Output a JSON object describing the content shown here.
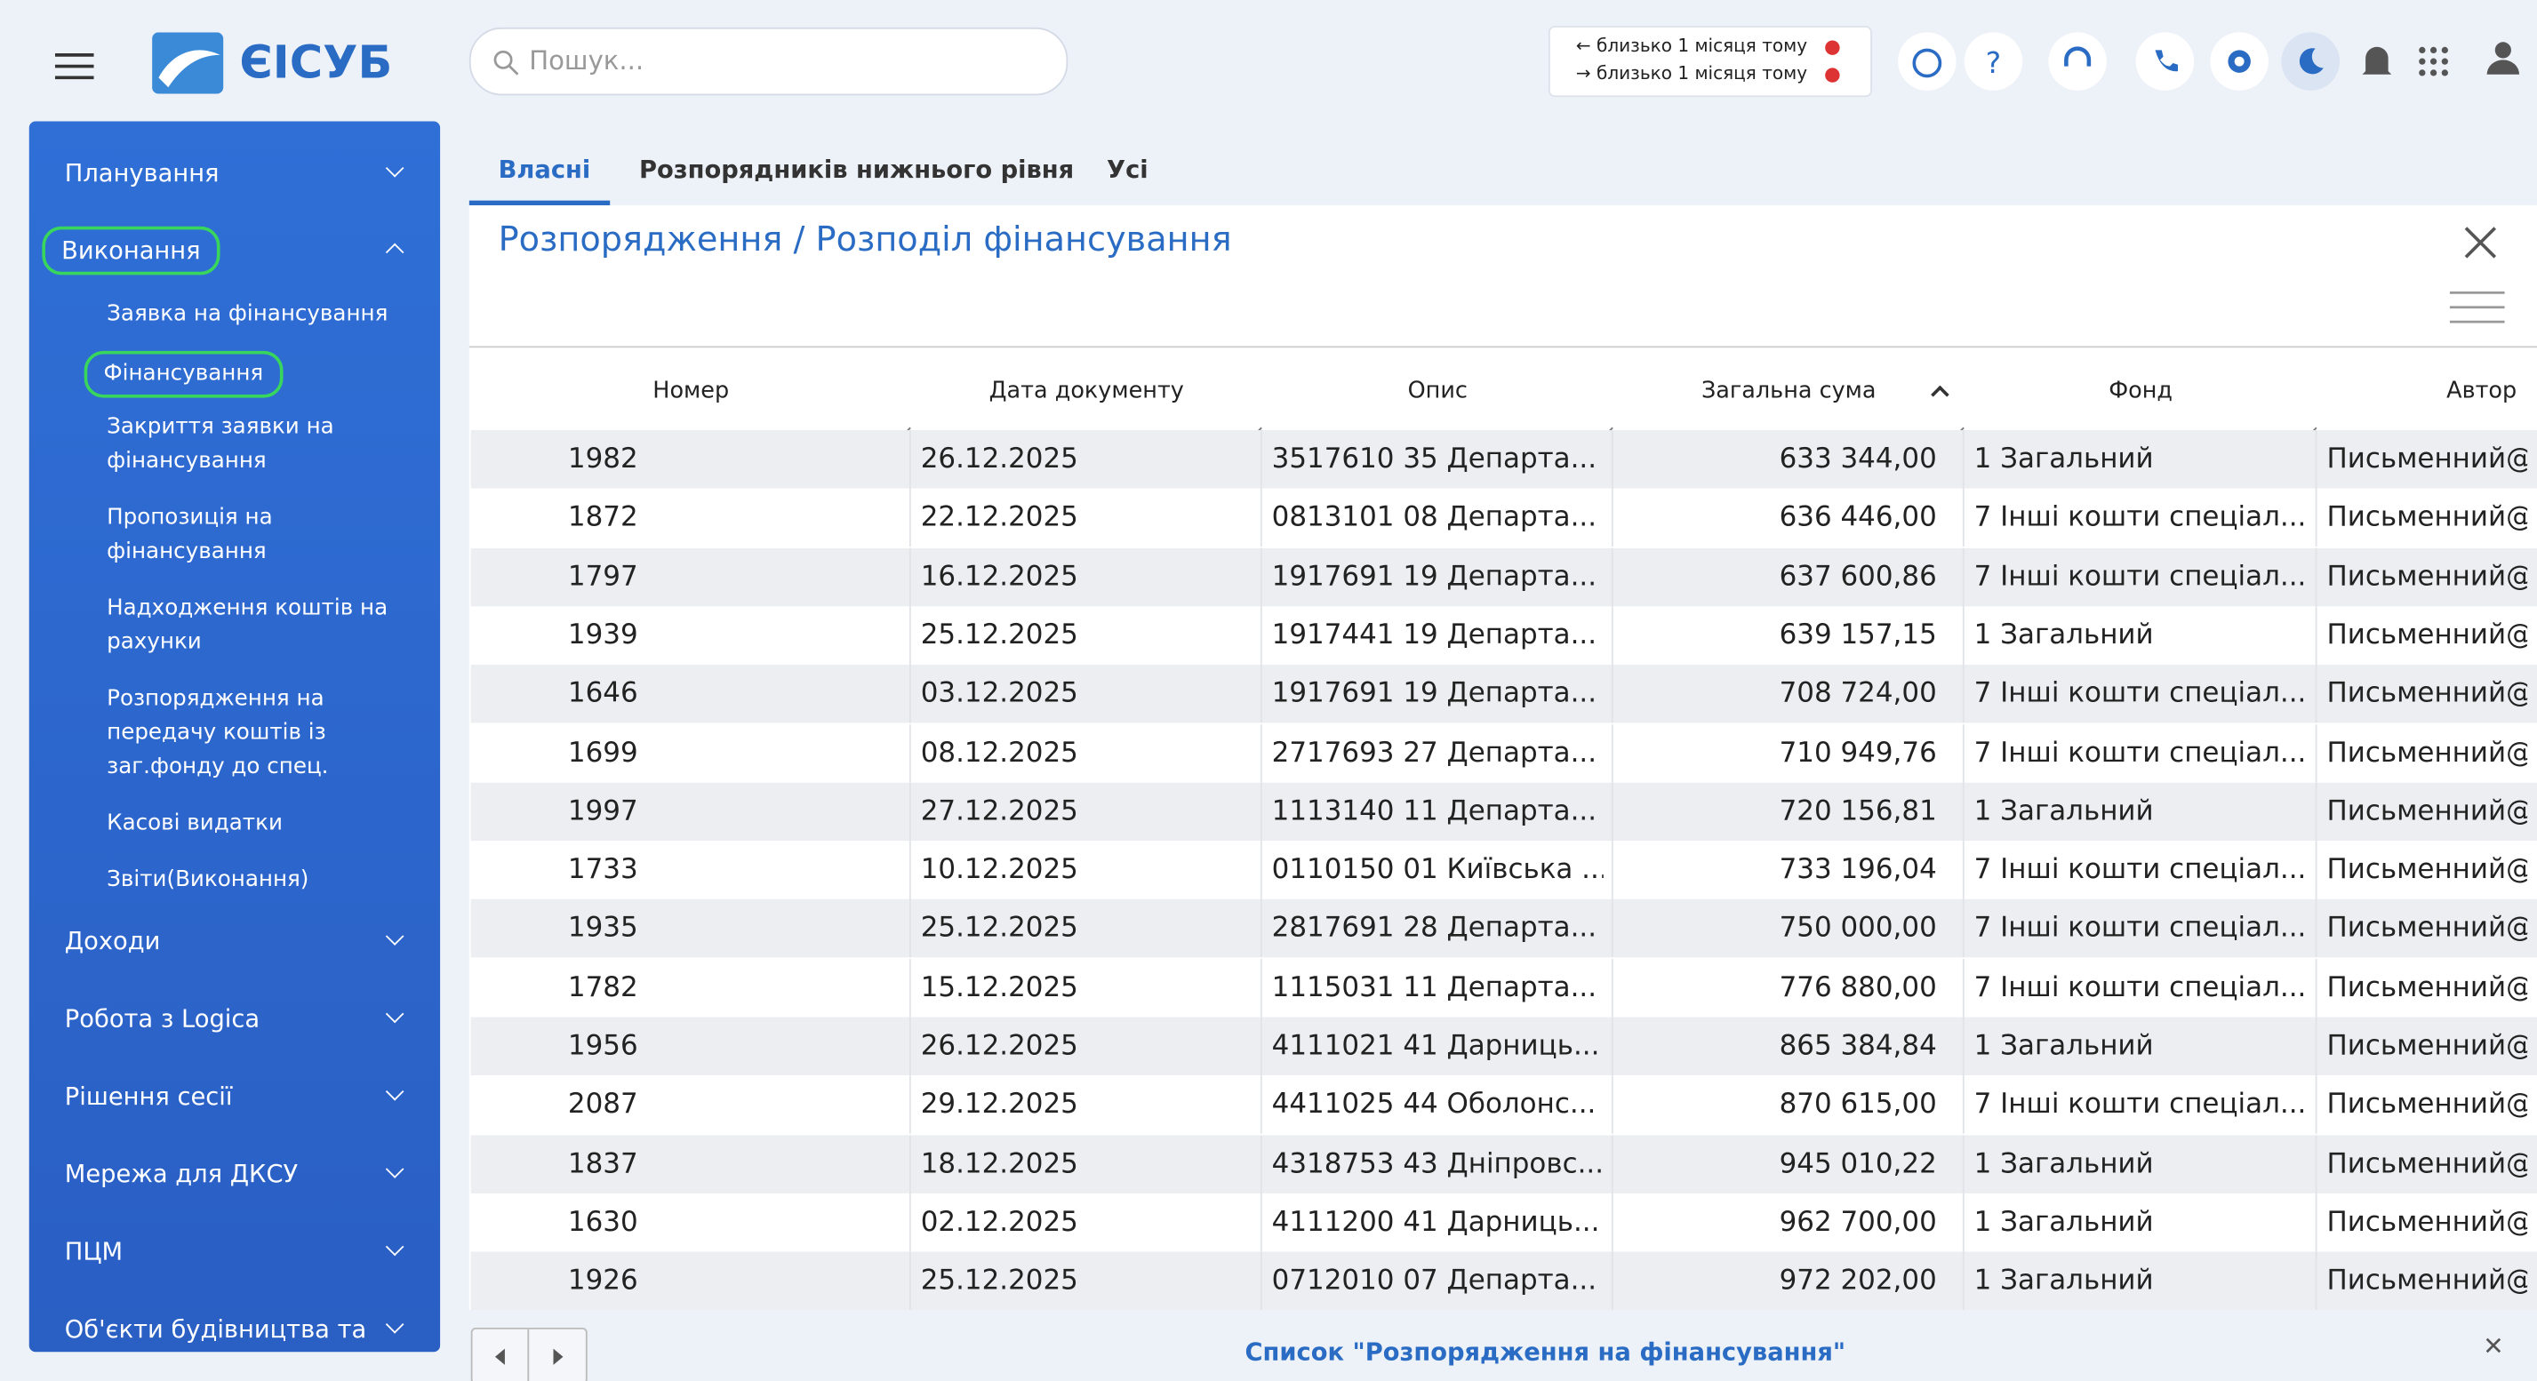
{
  "header": {
    "logo": "ЄІСУБ",
    "search_placeholder": "Пошук...",
    "notifications": [
      "близько 1 місяця тому",
      "близько 1 місяця тому"
    ]
  },
  "sidebar": {
    "items": [
      {
        "label": "Планування",
        "expanded": false
      },
      {
        "label": "Виконання",
        "expanded": true,
        "children": [
          "Заявка на фінансування",
          "Фінансування",
          "Закриття заявки на фінансування",
          "Пропозиція на фінансування",
          "Надходження коштів на рахунки",
          "Розпорядження на передачу коштів із заг.фонду до спец.",
          "Касові видатки",
          "Звіти(Виконання)"
        ]
      },
      {
        "label": "Доходи",
        "expanded": false
      },
      {
        "label": "Робота з Logica",
        "expanded": false
      },
      {
        "label": "Рішення сесії",
        "expanded": false
      },
      {
        "label": "Мережа для ДКСУ",
        "expanded": false
      },
      {
        "label": "ПЦМ",
        "expanded": false
      },
      {
        "label": "Об'єкти будівництва та",
        "expanded": false
      }
    ]
  },
  "tabs": [
    "Власні",
    "Розпорядників нижнього рівня",
    "Усі"
  ],
  "breadcrumb": "Розпорядження / Розподіл фінансування",
  "table": {
    "columns": [
      "Номер",
      "Дата документу",
      "Опис",
      "Загальна сума",
      "Фонд",
      "Автор"
    ],
    "rows": [
      [
        "1982",
        "26.12.2025",
        "3517610 35 Департа...",
        "633 344,00",
        "1 Загальний",
        "Письменний@"
      ],
      [
        "1872",
        "22.12.2025",
        "0813101 08 Департа...",
        "636 446,00",
        "7 Інші кошти спеціал...",
        "Письменний@"
      ],
      [
        "1797",
        "16.12.2025",
        "1917691 19 Департа...",
        "637 600,86",
        "7 Інші кошти спеціал...",
        "Письменний@"
      ],
      [
        "1939",
        "25.12.2025",
        "1917441 19 Департа...",
        "639 157,15",
        "1 Загальний",
        "Письменний@"
      ],
      [
        "1646",
        "03.12.2025",
        "1917691 19 Департа...",
        "708 724,00",
        "7 Інші кошти спеціал...",
        "Письменний@"
      ],
      [
        "1699",
        "08.12.2025",
        "2717693 27 Департа...",
        "710 949,76",
        "7 Інші кошти спеціал...",
        "Письменний@"
      ],
      [
        "1997",
        "27.12.2025",
        "1113140 11 Департа...",
        "720 156,81",
        "1 Загальний",
        "Письменний@"
      ],
      [
        "1733",
        "10.12.2025",
        "0110150 01 Київська ...",
        "733 196,04",
        "7 Інші кошти спеціал...",
        "Письменний@"
      ],
      [
        "1935",
        "25.12.2025",
        "2817691 28 Департа...",
        "750 000,00",
        "7 Інші кошти спеціал...",
        "Письменний@"
      ],
      [
        "1782",
        "15.12.2025",
        "1115031 11 Департа...",
        "776 880,00",
        "7 Інші кошти спеціал...",
        "Письменний@"
      ],
      [
        "1956",
        "26.12.2025",
        "4111021 41 Дарниць...",
        "865 384,84",
        "1 Загальний",
        "Письменний@"
      ],
      [
        "2087",
        "29.12.2025",
        "4411025 44 Оболонс...",
        "870 615,00",
        "7 Інші кошти спеціал...",
        "Письменний@"
      ],
      [
        "1837",
        "18.12.2025",
        "4318753 43 Дніпровс...",
        "945 010,22",
        "1 Загальний",
        "Письменний@"
      ],
      [
        "1630",
        "02.12.2025",
        "4111200 41 Дарниць...",
        "962 700,00",
        "1 Загальний",
        "Письменний@"
      ],
      [
        "1926",
        "25.12.2025",
        "0712010 07 Департа...",
        "972 202,00",
        "1 Загальний",
        "Письменний@"
      ]
    ]
  },
  "footer": {
    "title": "Список \"Розпорядження на фінансування\""
  }
}
